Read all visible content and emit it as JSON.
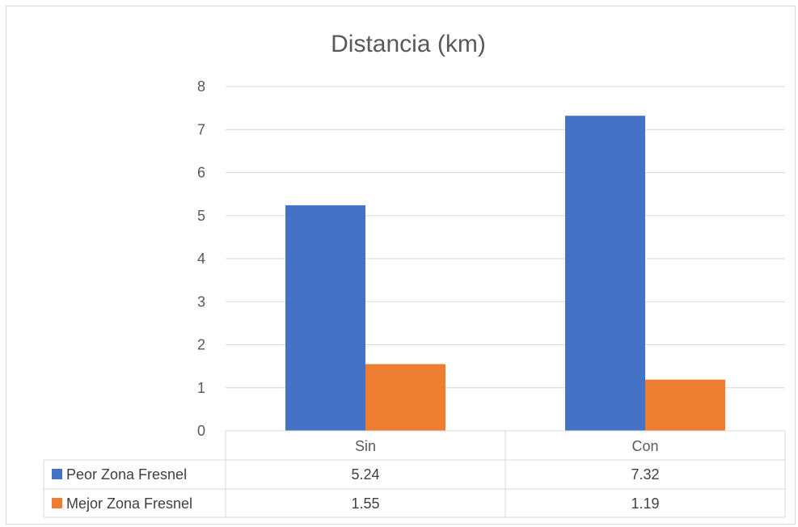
{
  "chart_data": {
    "type": "bar",
    "title": "Distancia (km)",
    "categories": [
      "Sin",
      "Con"
    ],
    "series": [
      {
        "name": "Peor Zona Fresnel",
        "values": [
          5.24,
          7.32
        ],
        "color": "#4472C4"
      },
      {
        "name": "Mejor Zona Fresnel",
        "values": [
          1.55,
          1.19
        ],
        "color": "#ED7D31"
      }
    ],
    "ylim": [
      0,
      8
    ],
    "yticks": [
      0,
      1,
      2,
      3,
      4,
      5,
      6,
      7,
      8
    ],
    "grid": true,
    "legend": "data-table-below",
    "data_table": {
      "rows": [
        {
          "label": "Peor Zona Fresnel",
          "cells": [
            "5.24",
            "7.32"
          ]
        },
        {
          "label": "Mejor Zona Fresnel",
          "cells": [
            "1.55",
            "1.19"
          ]
        }
      ]
    },
    "colors": {
      "grid": "#d9d9d9",
      "text": "#595959",
      "table_border": "#d9d9d9"
    }
  }
}
